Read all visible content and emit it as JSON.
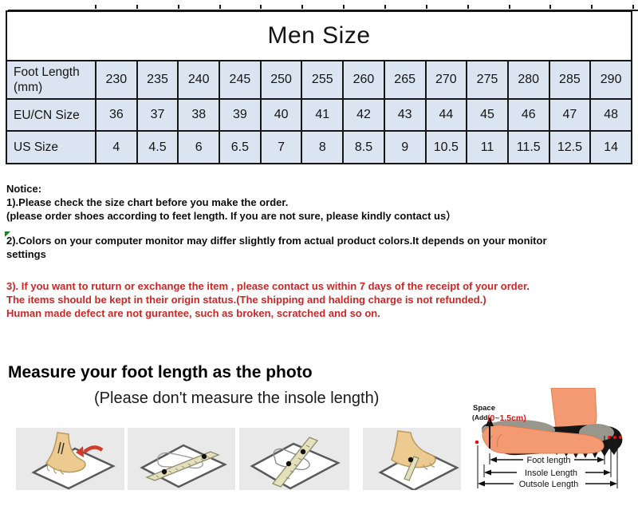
{
  "size_table": {
    "title": "Men Size",
    "rows": [
      {
        "label": "Foot Length (mm)",
        "values": [
          "230",
          "235",
          "240",
          "245",
          "250",
          "255",
          "260",
          "265",
          "270",
          "275",
          "280",
          "285",
          "290"
        ]
      },
      {
        "label": "EU/CN Size",
        "values": [
          "36",
          "37",
          "38",
          "39",
          "40",
          "41",
          "42",
          "43",
          "44",
          "45",
          "46",
          "47",
          "48"
        ]
      },
      {
        "label": "US Size",
        "values": [
          "4",
          "4.5",
          "6",
          "6.5",
          "7",
          "8",
          "8.5",
          "9",
          "10.5",
          "11",
          "11.5",
          "12.5",
          "14"
        ]
      }
    ]
  },
  "notice": {
    "heading": "Notice:",
    "line1": "1).Please check the size chart before you make the order.",
    "line2": "(please order shoes according to feet length. If you are not sure, please kindly contact us）",
    "line3a": "2).Colors on your computer monitor may differ slightly from actual product colors.It depends on your monitor",
    "line3b": "settings",
    "red1": "3). If you want to ruturn or exchange the item , please contact us within 7 days of the receipt of your order.",
    "red2": "The items should be kept in their origin status.(The shipping and halding charge is not refunded.)",
    "red3": "Human made defect are not gurantee, such as broken, scratched and so on."
  },
  "measure": {
    "heading": "Measure your foot length as the photo",
    "subheading": "(Please don't measure the insole length)"
  },
  "diagram": {
    "space_label": "Space",
    "space_add": "(Add",
    "space_range": "(0~1.5cm)",
    "foot_length": "Foot length",
    "insole_length": "Insole Length",
    "outsole_length": "Outsole Length"
  },
  "colors": {
    "cell_blue": "#dbe5f1",
    "grid_black": "#161616",
    "alert_red": "#cc2626",
    "marker_green": "#1f7a2e",
    "skin_salmon": "#f49a73",
    "skin_tan": "#ecca90",
    "panel_gray": "#e9e9e9"
  }
}
